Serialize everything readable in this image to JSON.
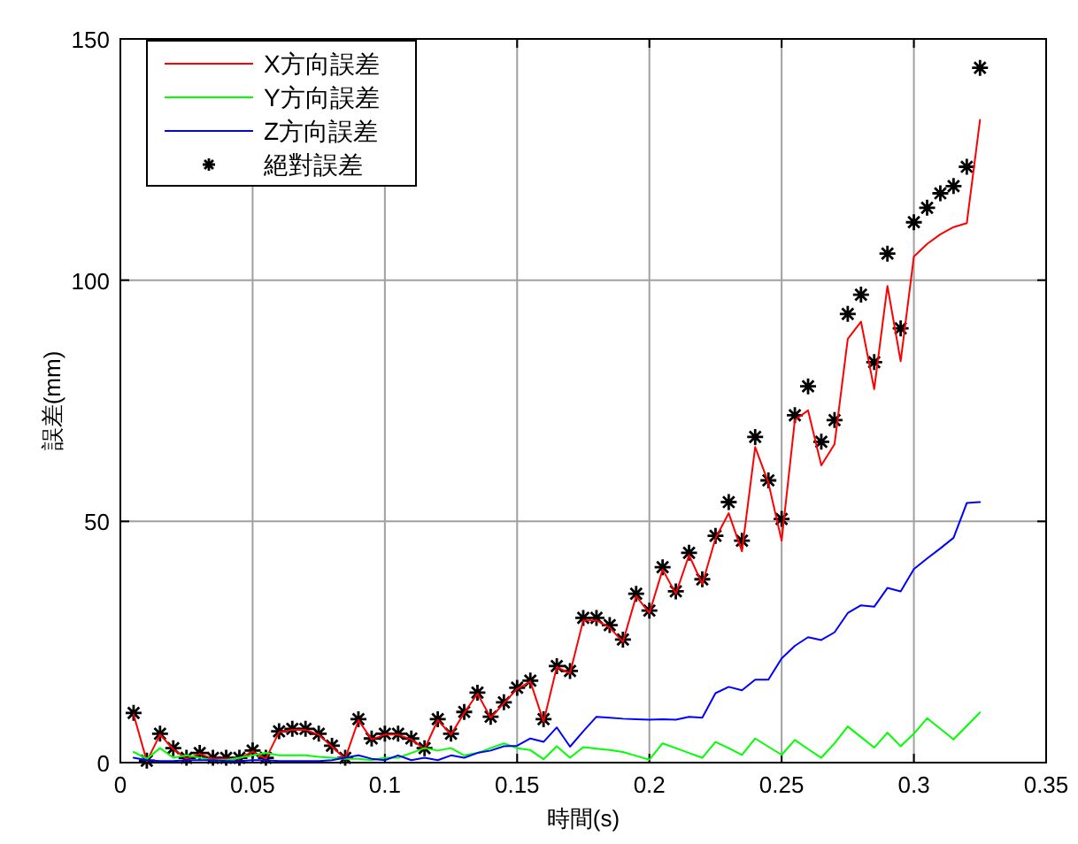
{
  "chart_data": {
    "type": "line",
    "xlabel": "時間(s)",
    "ylabel": "誤差(mm)",
    "x": [
      0.005,
      0.01,
      0.015,
      0.02,
      0.025,
      0.03,
      0.035,
      0.04,
      0.045,
      0.05,
      0.055,
      0.06,
      0.065,
      0.07,
      0.075,
      0.08,
      0.085,
      0.09,
      0.095,
      0.1,
      0.105,
      0.11,
      0.115,
      0.12,
      0.125,
      0.13,
      0.135,
      0.14,
      0.145,
      0.15,
      0.155,
      0.16,
      0.165,
      0.17,
      0.175,
      0.18,
      0.185,
      0.19,
      0.195,
      0.2,
      0.205,
      0.21,
      0.215,
      0.22,
      0.225,
      0.23,
      0.235,
      0.24,
      0.245,
      0.25,
      0.255,
      0.26,
      0.265,
      0.27,
      0.275,
      0.28,
      0.285,
      0.29,
      0.295,
      0.3,
      0.305,
      0.31,
      0.315,
      0.32,
      0.325
    ],
    "xlim": [
      0,
      0.35
    ],
    "ylim": [
      0,
      150
    ],
    "xticks": [
      0,
      0.05,
      0.1,
      0.15,
      0.2,
      0.25,
      0.3,
      0.35
    ],
    "yticks": [
      0,
      50,
      100,
      150
    ],
    "grid": true,
    "legend": "top left",
    "series": [
      {
        "name": "X方向誤差",
        "color": "#ff0000",
        "values": [
          10,
          0.3,
          5.8,
          2.8,
          0.8,
          1.8,
          0.8,
          0.8,
          0.8,
          2.3,
          0.8,
          6.3,
          6.8,
          6.8,
          5.8,
          3.3,
          0.8,
          8.8,
          4.8,
          5.8,
          5.8,
          4.8,
          2.8,
          8.8,
          5.8,
          10.3,
          14.3,
          9.3,
          12.3,
          15.3,
          16.8,
          8.5,
          19.8,
          18.5,
          29.5,
          29.5,
          28,
          25,
          34.5,
          31,
          40,
          35,
          43,
          37,
          46.5,
          51.7,
          43.8,
          65.4,
          58,
          46,
          71,
          73,
          61.6,
          66,
          87.8,
          91.4,
          77.4,
          98.8,
          83.2,
          104.9,
          107.5,
          109.5,
          111,
          111.8,
          133.2
        ]
      },
      {
        "name": "Y方向誤差",
        "color": "#00ff00",
        "values": [
          2.2,
          0.8,
          3,
          1,
          1.5,
          1,
          0.5,
          0.5,
          1,
          1.5,
          2,
          1.5,
          1.5,
          1.5,
          1.2,
          1,
          0.8,
          0.8,
          0.5,
          1,
          1,
          2,
          3,
          2.5,
          3,
          1.5,
          2,
          3,
          4,
          3,
          2.6,
          0.7,
          3.4,
          1,
          3.2,
          2.9,
          2.6,
          2.2,
          1.4,
          0.6,
          4,
          3,
          2,
          1,
          4.3,
          3,
          1.6,
          5,
          3.3,
          1.6,
          4.7,
          2.8,
          1,
          4,
          7.5,
          5.3,
          3.1,
          6.2,
          3.4,
          6,
          9.2,
          7,
          4.8,
          7.6,
          10.4
        ]
      },
      {
        "name": "Z方向誤差",
        "color": "#0000ff",
        "values": [
          1,
          0.5,
          0.3,
          0.3,
          0.5,
          0.5,
          0.5,
          0.3,
          0.3,
          0.5,
          0.5,
          0.3,
          0.3,
          0.3,
          0.3,
          0.5,
          1,
          1.5,
          0.8,
          0.5,
          1.5,
          0.5,
          1,
          0.5,
          1.5,
          1,
          2,
          2.5,
          3.4,
          3.5,
          5,
          4.3,
          7.3,
          3.3,
          6.5,
          9.5,
          9.3,
          9.1,
          9,
          8.9,
          9,
          8.9,
          9.5,
          9.3,
          14.4,
          15.7,
          15,
          17.2,
          17.2,
          21.6,
          24.2,
          26,
          25.4,
          27,
          31,
          32.6,
          32.3,
          36.2,
          35.5,
          40.1,
          42.3,
          44.4,
          46.6,
          53.8,
          54
        ]
      },
      {
        "name": "絕對誤差",
        "type": "scatter",
        "marker": "cross",
        "color": "#000000",
        "values": [
          10.3,
          0.4,
          6,
          3,
          1,
          2,
          1,
          1,
          1,
          2.5,
          1,
          6.5,
          7,
          7,
          6,
          3.5,
          1,
          9,
          5,
          6,
          6,
          5,
          3,
          9,
          6,
          10.5,
          14.5,
          9.5,
          12.5,
          15.5,
          17,
          9,
          20,
          19,
          30,
          30,
          28.5,
          25.5,
          35,
          31.5,
          40.5,
          35.5,
          43.5,
          38,
          47,
          54,
          46,
          67.5,
          58.5,
          50.5,
          72,
          78,
          66.5,
          71,
          93,
          97,
          83,
          105.5,
          90,
          112,
          115,
          118,
          119.5,
          123.5,
          144
        ]
      }
    ]
  }
}
